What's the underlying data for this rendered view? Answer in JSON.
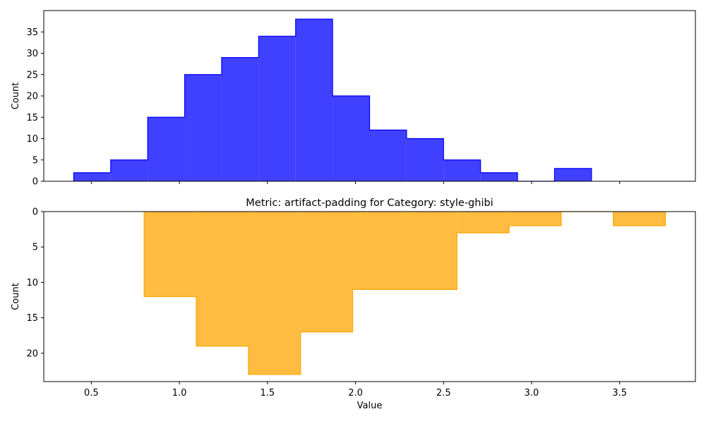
{
  "chart_data": [
    {
      "type": "histogram",
      "title": "",
      "xlabel": "",
      "ylabel": "Count",
      "xlim": [
        0.23,
        3.93
      ],
      "ylim": [
        0,
        40
      ],
      "yticks": [
        0,
        5,
        10,
        15,
        20,
        25,
        30,
        35
      ],
      "xticks": [
        0.5,
        1.0,
        1.5,
        2.0,
        2.5,
        3.0,
        3.5
      ],
      "xtick_labels_visible": false,
      "color": "#0000ff",
      "fill_alpha": 0.75,
      "bin_edges": [
        0.4,
        0.61,
        0.82,
        1.03,
        1.24,
        1.45,
        1.66,
        1.87,
        2.08,
        2.29,
        2.5,
        2.71,
        2.92,
        3.13,
        3.34
      ],
      "counts": [
        2,
        5,
        15,
        25,
        29,
        34,
        38,
        20,
        12,
        10,
        5,
        2,
        0,
        3
      ]
    },
    {
      "type": "histogram",
      "title": "Metric: artifact-padding for Category: style-ghibi",
      "xlabel": "Value",
      "ylabel": "Count",
      "xlim": [
        0.23,
        3.93
      ],
      "ylim": [
        0,
        24
      ],
      "y_inverted": true,
      "yticks": [
        0,
        5,
        10,
        15,
        20
      ],
      "xticks": [
        0.5,
        1.0,
        1.5,
        2.0,
        2.5,
        3.0,
        3.5
      ],
      "xtick_labels": [
        "0.5",
        "1.0",
        "1.5",
        "2.0",
        "2.5",
        "3.0",
        "3.5"
      ],
      "color": "#ffa500",
      "fill_alpha": 0.75,
      "bin_edges": [
        0.8,
        1.096,
        1.392,
        1.688,
        1.984,
        2.28,
        2.576,
        2.872,
        3.168,
        3.464,
        3.76
      ],
      "counts": [
        12,
        19,
        23,
        17,
        11,
        11,
        3,
        2,
        0,
        2
      ]
    }
  ]
}
